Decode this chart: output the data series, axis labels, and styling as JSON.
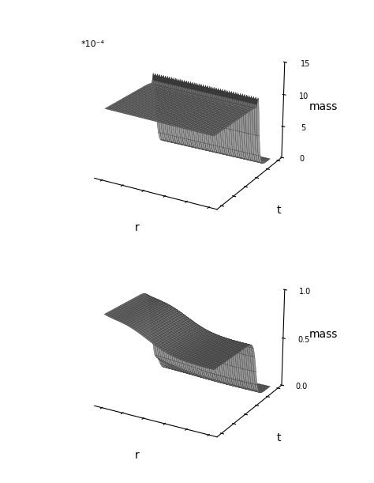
{
  "plot1": {
    "zlabel": "mass",
    "zscale_label": "*10⁻⁴",
    "xlabel": "r",
    "ylabel": "t",
    "zticks": [
      0.0,
      5.0,
      10.0,
      15.0
    ],
    "zlim": [
      0,
      15
    ],
    "elev": 22,
    "azim": -60
  },
  "plot2": {
    "zlabel": "mass",
    "xlabel": "r",
    "ylabel": "t",
    "zticks": [
      0.0,
      0.5,
      1.0
    ],
    "zlim": [
      0,
      1.0
    ],
    "elev": 22,
    "azim": -60
  },
  "surface_color": "#aaaaaa",
  "edge_color": "#333333",
  "background_color": "#ffffff"
}
